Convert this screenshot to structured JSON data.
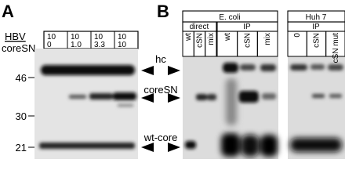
{
  "panel_a": {
    "label": "A",
    "row_labels": [
      "HBV",
      "coreSN"
    ],
    "lanes": [
      {
        "hbv": "10",
        "coresn": "0"
      },
      {
        "hbv": "10",
        "coresn": "1.0"
      },
      {
        "hbv": "10",
        "coresn": "3.3"
      },
      {
        "hbv": "10",
        "coresn": "10"
      }
    ],
    "markers": [
      "46",
      "30",
      "21"
    ]
  },
  "band_labels": [
    "hc",
    "coreSN",
    "wt-core"
  ],
  "panel_b": {
    "label": "B",
    "groups": [
      {
        "name": "E. coli",
        "subgroups": [
          {
            "name": "direct",
            "lanes": [
              "wt",
              "cSN",
              "mix"
            ]
          },
          {
            "name": "IP",
            "lanes": [
              "wt",
              "cSN",
              "mix"
            ]
          }
        ]
      },
      {
        "name": "Huh 7",
        "subgroups": [
          {
            "name": "IP",
            "lanes": [
              "0",
              "cSN",
              "cSN mut"
            ]
          }
        ]
      }
    ]
  }
}
